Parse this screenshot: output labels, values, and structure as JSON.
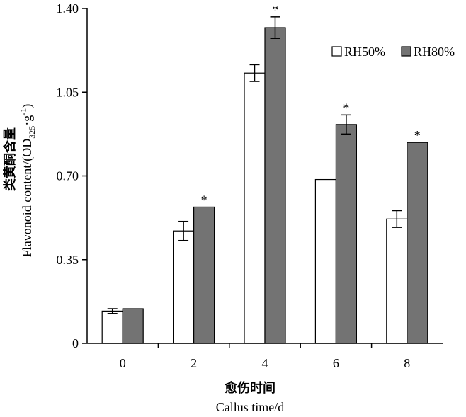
{
  "chart_data": {
    "type": "bar",
    "categories": [
      "0",
      "2",
      "4",
      "6",
      "8"
    ],
    "series": [
      {
        "name": "RH50%",
        "color": "#ffffff",
        "values": [
          0.135,
          0.47,
          1.13,
          0.685,
          0.52
        ],
        "errors": [
          0.01,
          0.04,
          0.035,
          0.0,
          0.035
        ]
      },
      {
        "name": "RH80%",
        "color": "#737373",
        "values": [
          0.145,
          0.57,
          1.32,
          0.915,
          0.84
        ],
        "errors": [
          0.0,
          0.0,
          0.045,
          0.04,
          0.0
        ]
      }
    ],
    "significance": [
      "",
      "*",
      "*",
      "*",
      "*"
    ],
    "ylim": [
      0,
      1.4
    ],
    "yticks": [
      "0",
      "0.35",
      "0.70",
      "1.05",
      "1.40"
    ],
    "xlabel_cn": "愈伤时间",
    "xlabel": "Callus time/d",
    "ylabel_cn": "类黄酮含量",
    "ylabel_main": "Flavonoid content/(OD",
    "ylabel_sub": "325",
    "ylabel_mid": "·g",
    "ylabel_sup": "-1",
    "ylabel_end": ")",
    "legend_position": "top-right",
    "grid": false
  }
}
